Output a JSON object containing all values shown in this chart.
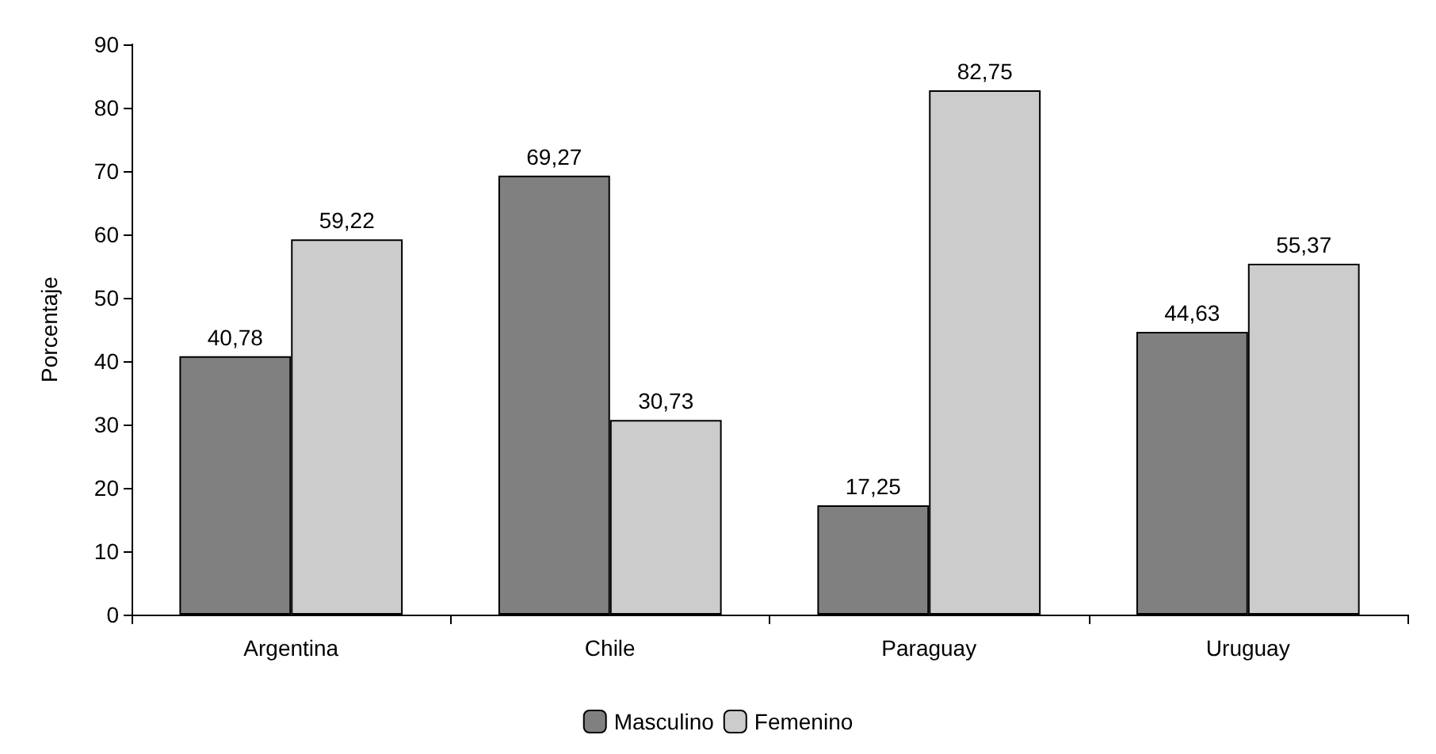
{
  "chart_data": {
    "type": "bar",
    "ylabel": "Porcentaje",
    "categories": [
      "Argentina",
      "Chile",
      "Paraguay",
      "Uruguay"
    ],
    "series": [
      {
        "name": "Masculino",
        "color": "#808080",
        "values": [
          40.78,
          69.27,
          17.25,
          44.63
        ],
        "value_labels": [
          "40,78",
          "69,27",
          "17,25",
          "44,63"
        ]
      },
      {
        "name": "Femenino",
        "color": "#cccccc",
        "values": [
          59.22,
          30.73,
          82.75,
          55.37
        ],
        "value_labels": [
          "59,22",
          "30,73",
          "82,75",
          "55,37"
        ]
      }
    ],
    "ylim": [
      0,
      90
    ],
    "yticks": [
      0,
      10,
      20,
      30,
      40,
      50,
      60,
      70,
      80,
      90
    ],
    "grid": false,
    "legend": "bottom"
  }
}
